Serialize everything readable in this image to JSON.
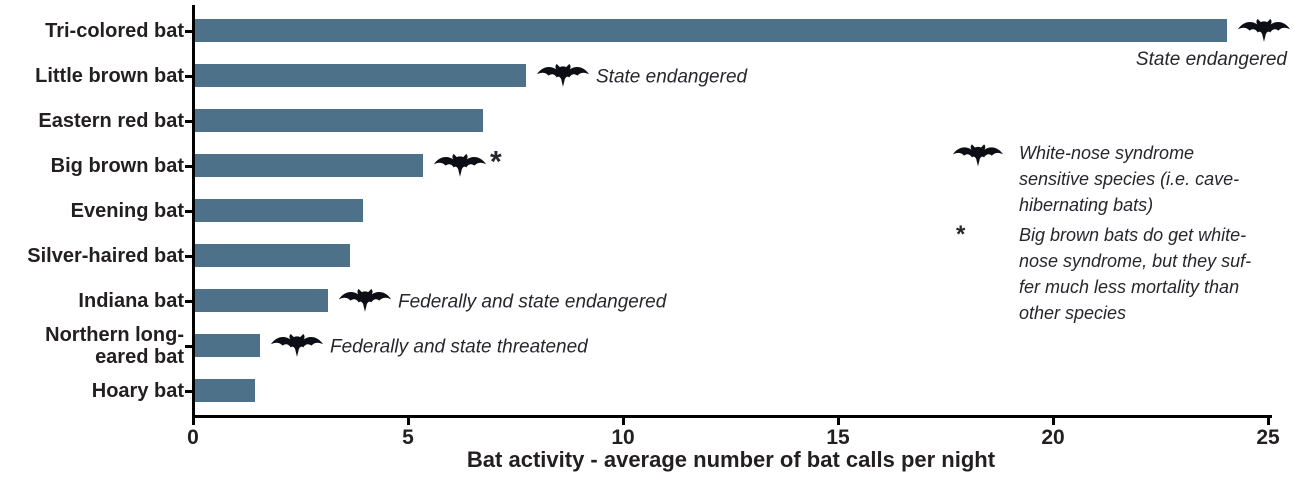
{
  "chart_data": {
    "type": "bar",
    "orientation": "horizontal",
    "title": "",
    "xlabel": "Bat activity - average number of bat calls per night",
    "ylabel": "",
    "xlim": [
      0,
      25
    ],
    "xticks": [
      0,
      5,
      10,
      15,
      20,
      25
    ],
    "grid": false,
    "categories": [
      "Tri-colored bat",
      "Little brown bat",
      "Eastern red bat",
      "Big brown bat",
      "Evening bat",
      "Silver-haired bat",
      "Indiana bat",
      "Northern long-\neared bat",
      "Hoary bat"
    ],
    "values": [
      24,
      7.7,
      6.7,
      5.3,
      3.9,
      3.6,
      3.1,
      1.5,
      1.4
    ],
    "annotations": [
      {
        "category": "Tri-colored bat",
        "icon": "bat-icon",
        "text": "State endangered",
        "placement": "icon-at-bar-end-text-below"
      },
      {
        "category": "Little brown bat",
        "icon": "bat-icon",
        "text": "State endangered",
        "placement": "right-of-bar"
      },
      {
        "category": "Big brown bat",
        "icon": "bat-icon",
        "text": "*",
        "placement": "right-of-bar"
      },
      {
        "category": "Indiana bat",
        "icon": "bat-icon",
        "text": "Federally and state endangered",
        "placement": "right-of-bar"
      },
      {
        "category": "Northern long-eared bat",
        "icon": "bat-icon",
        "text": "Federally and state threatened",
        "placement": "right-of-bar"
      }
    ],
    "legend": {
      "position": "right",
      "items": [
        {
          "marker": "bat-icon",
          "lines": [
            "White-nose syndrome",
            "sensitive species (i.e. cave-",
            "hibernating bats)"
          ]
        },
        {
          "marker": "asterisk",
          "marker_glyph": "*",
          "lines": [
            "Big brown bats do get white-",
            "nose syndrome, but they suf-",
            "fer much less mortality than",
            "other species"
          ]
        }
      ]
    },
    "colors": {
      "bar": "#4d7189",
      "axis": "#000000",
      "label_text": "#231f20",
      "annotation_text": "#26262e",
      "icon": "#0d0d15",
      "background": "#ffffff"
    }
  }
}
